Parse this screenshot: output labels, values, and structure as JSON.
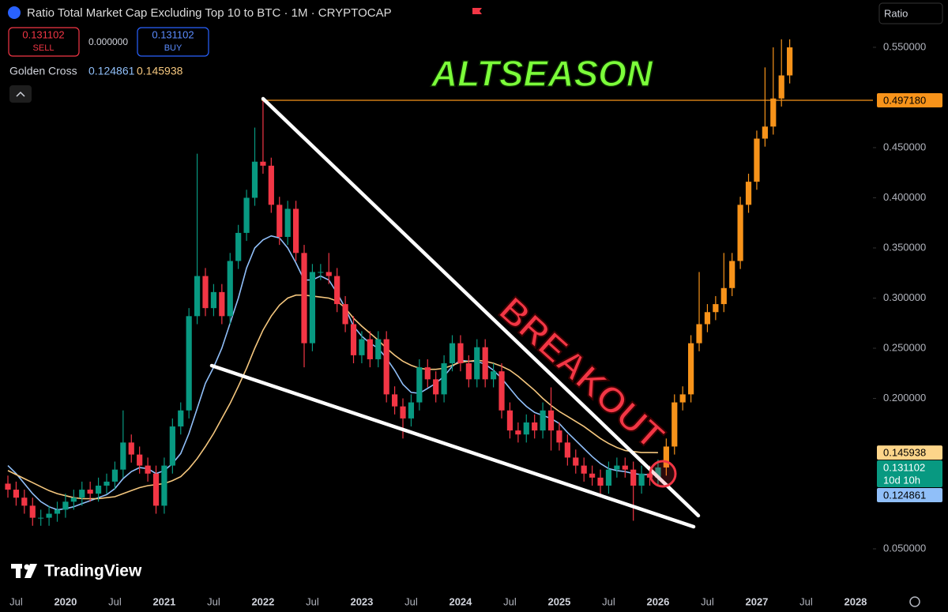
{
  "chart_data": {
    "type": "candlestick",
    "title": "Ratio Total Market Cap Excluding Top 10 to BTC · 1M · CRYPTOCAP",
    "x": [
      "2019-06",
      "2019-07",
      "2019-08",
      "2019-09",
      "2019-10",
      "2019-11",
      "2019-12",
      "2020-01",
      "2020-02",
      "2020-03",
      "2020-04",
      "2020-05",
      "2020-06",
      "2020-07",
      "2020-08",
      "2020-09",
      "2020-10",
      "2020-11",
      "2020-12",
      "2021-01",
      "2021-02",
      "2021-03",
      "2021-04",
      "2021-05",
      "2021-06",
      "2021-07",
      "2021-08",
      "2021-09",
      "2021-10",
      "2021-11",
      "2021-12",
      "2022-01",
      "2022-02",
      "2022-03",
      "2022-04",
      "2022-05",
      "2022-06",
      "2022-07",
      "2022-08",
      "2022-09",
      "2022-10",
      "2022-11",
      "2022-12",
      "2023-01",
      "2023-02",
      "2023-03",
      "2023-04",
      "2023-05",
      "2023-06",
      "2023-07",
      "2023-08",
      "2023-09",
      "2023-10",
      "2023-11",
      "2023-12",
      "2024-01",
      "2024-02",
      "2024-03",
      "2024-04",
      "2024-05",
      "2024-06",
      "2024-07",
      "2024-08",
      "2024-09",
      "2024-10",
      "2024-11",
      "2024-12",
      "2025-01",
      "2025-02",
      "2025-03",
      "2025-04",
      "2025-05",
      "2025-06",
      "2025-07",
      "2025-08",
      "2025-09",
      "2025-10",
      "2025-11",
      "2025-12",
      "2026-01",
      "2026-02",
      "2026-03",
      "2026-04",
      "2026-05",
      "2026-06",
      "2026-07",
      "2026-08",
      "2026-09",
      "2026-10",
      "2026-11",
      "2026-12",
      "2027-01",
      "2027-02",
      "2027-03",
      "2027-04",
      "2027-05"
    ],
    "open": [
      0.115,
      0.109,
      0.101,
      0.093,
      0.081,
      0.081,
      0.085,
      0.089,
      0.097,
      0.101,
      0.109,
      0.105,
      0.113,
      0.117,
      0.129,
      0.156,
      0.144,
      0.133,
      0.125,
      0.093,
      0.133,
      0.172,
      0.188,
      0.282,
      0.322,
      0.29,
      0.306,
      0.282,
      0.337,
      0.365,
      0.4,
      0.436,
      0.432,
      0.393,
      0.361,
      0.389,
      0.345,
      0.255,
      0.326,
      0.326,
      0.322,
      0.294,
      0.274,
      0.243,
      0.259,
      0.239,
      0.259,
      0.204,
      0.192,
      0.18,
      0.196,
      0.231,
      0.219,
      0.204,
      0.235,
      0.255,
      0.235,
      0.219,
      0.251,
      0.219,
      0.227,
      0.188,
      0.168,
      0.164,
      0.176,
      0.168,
      0.188,
      0.168,
      0.156,
      0.141,
      0.133,
      0.125,
      0.121,
      0.113,
      0.129,
      0.133,
      0.129,
      0.113,
      0.125,
      0.121,
      0.131102,
      0.152,
      0.196,
      0.204,
      0.255,
      0.274,
      0.286,
      0.294,
      0.31,
      0.337,
      0.393,
      0.416,
      0.459,
      0.471,
      0.499,
      0.522
    ],
    "high": [
      0.123,
      0.117,
      0.109,
      0.101,
      0.089,
      0.093,
      0.097,
      0.105,
      0.109,
      0.117,
      0.117,
      0.121,
      0.125,
      0.137,
      0.188,
      0.164,
      0.152,
      0.141,
      0.133,
      0.141,
      0.18,
      0.196,
      0.29,
      0.444,
      0.33,
      0.314,
      0.314,
      0.345,
      0.373,
      0.408,
      0.47,
      0.499,
      0.44,
      0.401,
      0.397,
      0.397,
      0.353,
      0.334,
      0.334,
      0.345,
      0.33,
      0.302,
      0.282,
      0.267,
      0.267,
      0.267,
      0.267,
      0.212,
      0.2,
      0.204,
      0.239,
      0.239,
      0.227,
      0.243,
      0.263,
      0.263,
      0.243,
      0.259,
      0.259,
      0.235,
      0.235,
      0.196,
      0.176,
      0.184,
      0.184,
      0.196,
      0.211,
      0.176,
      0.164,
      0.149,
      0.141,
      0.133,
      0.129,
      0.137,
      0.141,
      0.141,
      0.137,
      0.133,
      0.133,
      0.139,
      0.16,
      0.204,
      0.212,
      0.263,
      0.326,
      0.294,
      0.302,
      0.345,
      0.345,
      0.401,
      0.424,
      0.467,
      0.53,
      0.55,
      0.558,
      0.558
    ],
    "low": [
      0.101,
      0.093,
      0.085,
      0.073,
      0.073,
      0.073,
      0.077,
      0.081,
      0.089,
      0.093,
      0.097,
      0.097,
      0.105,
      0.109,
      0.121,
      0.136,
      0.125,
      0.117,
      0.085,
      0.085,
      0.125,
      0.164,
      0.18,
      0.274,
      0.282,
      0.282,
      0.274,
      0.274,
      0.329,
      0.357,
      0.392,
      0.424,
      0.385,
      0.353,
      0.353,
      0.337,
      0.231,
      0.247,
      0.318,
      0.314,
      0.286,
      0.266,
      0.235,
      0.235,
      0.231,
      0.231,
      0.196,
      0.184,
      0.16,
      0.172,
      0.188,
      0.211,
      0.196,
      0.196,
      0.227,
      0.227,
      0.211,
      0.211,
      0.211,
      0.211,
      0.18,
      0.16,
      0.156,
      0.156,
      0.16,
      0.16,
      0.148,
      0.148,
      0.133,
      0.125,
      0.117,
      0.113,
      0.105,
      0.105,
      0.121,
      0.121,
      0.078,
      0.105,
      0.113,
      0.113,
      0.123,
      0.144,
      0.188,
      0.196,
      0.247,
      0.266,
      0.278,
      0.286,
      0.302,
      0.329,
      0.385,
      0.408,
      0.451,
      0.463,
      0.491,
      0.514
    ],
    "close": [
      0.109,
      0.101,
      0.093,
      0.081,
      0.081,
      0.085,
      0.089,
      0.097,
      0.101,
      0.109,
      0.105,
      0.113,
      0.117,
      0.129,
      0.156,
      0.144,
      0.133,
      0.125,
      0.093,
      0.133,
      0.172,
      0.188,
      0.282,
      0.322,
      0.29,
      0.306,
      0.282,
      0.337,
      0.365,
      0.4,
      0.436,
      0.432,
      0.393,
      0.361,
      0.389,
      0.345,
      0.255,
      0.326,
      0.326,
      0.322,
      0.294,
      0.274,
      0.243,
      0.259,
      0.239,
      0.259,
      0.204,
      0.192,
      0.18,
      0.196,
      0.231,
      0.219,
      0.204,
      0.235,
      0.255,
      0.235,
      0.219,
      0.251,
      0.219,
      0.227,
      0.188,
      0.168,
      0.164,
      0.176,
      0.168,
      0.188,
      0.168,
      0.156,
      0.141,
      0.133,
      0.125,
      0.121,
      0.113,
      0.129,
      0.133,
      0.129,
      0.113,
      0.125,
      0.121,
      0.131102,
      0.152,
      0.196,
      0.204,
      0.255,
      0.274,
      0.286,
      0.294,
      0.31,
      0.337,
      0.393,
      0.416,
      0.459,
      0.471,
      0.499,
      0.522,
      0.55
    ],
    "colors": [
      "#f23645",
      "#f23645",
      "#f23645",
      "#f23645",
      "#089981",
      "#089981",
      "#089981",
      "#089981",
      "#089981",
      "#089981",
      "#f23645",
      "#089981",
      "#089981",
      "#089981",
      "#089981",
      "#f23645",
      "#f23645",
      "#f23645",
      "#f23645",
      "#089981",
      "#089981",
      "#089981",
      "#089981",
      "#089981",
      "#f23645",
      "#089981",
      "#f23645",
      "#089981",
      "#089981",
      "#089981",
      "#089981",
      "#f23645",
      "#f23645",
      "#f23645",
      "#089981",
      "#f23645",
      "#f23645",
      "#089981",
      "#089981",
      "#f23645",
      "#f23645",
      "#f23645",
      "#f23645",
      "#089981",
      "#f23645",
      "#089981",
      "#f23645",
      "#f23645",
      "#f23645",
      "#089981",
      "#089981",
      "#f23645",
      "#f23645",
      "#089981",
      "#089981",
      "#f23645",
      "#f23645",
      "#089981",
      "#f23645",
      "#089981",
      "#f23645",
      "#f23645",
      "#f23645",
      "#089981",
      "#f23645",
      "#089981",
      "#f23645",
      "#f23645",
      "#f23645",
      "#f23645",
      "#f23645",
      "#f23645",
      "#f23645",
      "#089981",
      "#089981",
      "#f23645",
      "#f23645",
      "#089981",
      "#f23645",
      "#089981",
      "#f7931a",
      "#f7931a",
      "#f7931a",
      "#f7931a",
      "#f7931a",
      "#f7931a",
      "#f7931a",
      "#f7931a",
      "#f7931a",
      "#f7931a",
      "#f7931a",
      "#f7931a",
      "#f7931a",
      "#f7931a",
      "#f7931a",
      "#f7931a"
    ],
    "indicator": {
      "name": "Golden Cross",
      "lines": [
        {
          "color": "#90bff9",
          "values": [
            0.133,
            0.125,
            0.115,
            0.105,
            0.097,
            0.092,
            0.089,
            0.09,
            0.092,
            0.095,
            0.098,
            0.101,
            0.104,
            0.11,
            0.12,
            0.127,
            0.131,
            0.13,
            0.125,
            0.128,
            0.135,
            0.145,
            0.165,
            0.19,
            0.215,
            0.231,
            0.25,
            0.275,
            0.3,
            0.33,
            0.35,
            0.358,
            0.362,
            0.36,
            0.35,
            0.335,
            0.318,
            0.318,
            0.322,
            0.318,
            0.305,
            0.29,
            0.272,
            0.262,
            0.255,
            0.25,
            0.24,
            0.228,
            0.214,
            0.206,
            0.205,
            0.21,
            0.215,
            0.222,
            0.232,
            0.238,
            0.237,
            0.237,
            0.234,
            0.228,
            0.22,
            0.21,
            0.2,
            0.192,
            0.186,
            0.183,
            0.18,
            0.175,
            0.166,
            0.158,
            0.15,
            0.142,
            0.135,
            0.13,
            0.128,
            0.127,
            0.125,
            0.124,
            0.124,
            0.124861
          ]
        },
        {
          "color": "#f5c77e",
          "values": [
            0.128,
            0.124,
            0.12,
            0.116,
            0.112,
            0.108,
            0.105,
            0.103,
            0.101,
            0.1,
            0.1,
            0.1,
            0.101,
            0.102,
            0.105,
            0.108,
            0.111,
            0.113,
            0.114,
            0.115,
            0.118,
            0.122,
            0.13,
            0.14,
            0.152,
            0.165,
            0.18,
            0.195,
            0.212,
            0.23,
            0.25,
            0.268,
            0.282,
            0.293,
            0.3,
            0.303,
            0.303,
            0.302,
            0.301,
            0.3,
            0.297,
            0.29,
            0.28,
            0.272,
            0.265,
            0.258,
            0.25,
            0.243,
            0.237,
            0.233,
            0.23,
            0.229,
            0.229,
            0.23,
            0.233,
            0.236,
            0.237,
            0.238,
            0.237,
            0.235,
            0.232,
            0.228,
            0.222,
            0.215,
            0.208,
            0.2,
            0.193,
            0.187,
            0.182,
            0.177,
            0.172,
            0.166,
            0.16,
            0.155,
            0.151,
            0.148,
            0.147,
            0.146,
            0.146,
            0.145938
          ]
        }
      ]
    },
    "ylim": [
      0.0067,
      0.5972
    ],
    "yticks": [
      {
        "value": 0.05,
        "label": "0.050000"
      },
      {
        "value": 0.2,
        "label": "0.200000"
      },
      {
        "value": 0.25,
        "label": "0.250000"
      },
      {
        "value": 0.3,
        "label": "0.300000"
      },
      {
        "value": 0.35,
        "label": "0.350000"
      },
      {
        "value": 0.4,
        "label": "0.400000"
      },
      {
        "value": 0.45,
        "label": "0.450000"
      },
      {
        "value": 0.55,
        "label": "0.550000"
      }
    ],
    "xticks": [
      {
        "value": "2019-07",
        "label": "Jul"
      },
      {
        "value": "2020-01",
        "label": "2020"
      },
      {
        "value": "2020-07",
        "label": "Jul"
      },
      {
        "value": "2021-01",
        "label": "2021"
      },
      {
        "value": "2021-07",
        "label": "Jul"
      },
      {
        "value": "2022-01",
        "label": "2022"
      },
      {
        "value": "2022-07",
        "label": "Jul"
      },
      {
        "value": "2023-01",
        "label": "2023"
      },
      {
        "value": "2023-07",
        "label": "Jul"
      },
      {
        "value": "2024-01",
        "label": "2024"
      },
      {
        "value": "2024-07",
        "label": "Jul"
      },
      {
        "value": "2025-01",
        "label": "2025"
      },
      {
        "value": "2025-07",
        "label": "Jul"
      },
      {
        "value": "2026-01",
        "label": "2026"
      },
      {
        "value": "2026-07",
        "label": "Jul"
      },
      {
        "value": "2027-01",
        "label": "2027"
      },
      {
        "value": "2027-07",
        "label": "Jul"
      },
      {
        "value": "2028-01",
        "label": "2028"
      }
    ],
    "grid": false,
    "level": {
      "value": 0.49718,
      "label": "0.497180",
      "color": "#f7931a"
    },
    "countdown": "10d 10h",
    "annotations": {
      "altseason": "ALTSEASON",
      "breakout": "BREAKOUT"
    }
  },
  "header": {
    "sell": "SELL",
    "spread": "0.000000",
    "buy": "BUY",
    "scale_button": "Ratio",
    "logo": "TradingView"
  }
}
